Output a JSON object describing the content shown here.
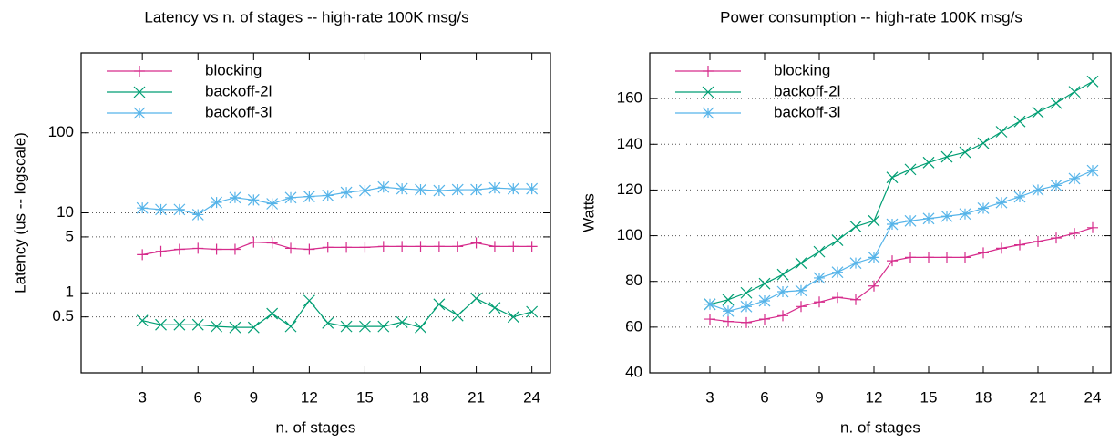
{
  "chart_data": [
    {
      "type": "line",
      "title": "Latency vs n. of stages -- high-rate 100K msg/s",
      "x_label": "n. of stages",
      "y_label": "Latency (us -- logscale)",
      "log_y": true,
      "grid": true,
      "legend": "top-left",
      "xlim": [
        -0.3,
        25
      ],
      "xticks": [
        3,
        6,
        9,
        12,
        15,
        18,
        21,
        24
      ],
      "ylim": [
        0.1,
        1000
      ],
      "yticks": [
        0.5,
        1,
        5,
        10,
        100
      ],
      "x": [
        3,
        4,
        5,
        6,
        7,
        8,
        9,
        10,
        11,
        12,
        13,
        14,
        15,
        16,
        17,
        18,
        19,
        20,
        21,
        22,
        23,
        24
      ],
      "series": [
        {
          "name": "blocking",
          "color": "#d62c8c",
          "marker": "plus",
          "values": [
            3.0,
            3.3,
            3.5,
            3.6,
            3.5,
            3.5,
            4.3,
            4.2,
            3.6,
            3.5,
            3.7,
            3.7,
            3.7,
            3.8,
            3.8,
            3.8,
            3.8,
            3.8,
            4.2,
            3.8,
            3.8,
            3.8
          ]
        },
        {
          "name": "backoff-2l",
          "color": "#009e73",
          "marker": "cross",
          "values": [
            0.45,
            0.4,
            0.4,
            0.4,
            0.38,
            0.37,
            0.37,
            0.55,
            0.38,
            0.8,
            0.42,
            0.38,
            0.38,
            0.38,
            0.43,
            0.37,
            0.72,
            0.52,
            0.85,
            0.65,
            0.5,
            0.58
          ]
        },
        {
          "name": "backoff-3l",
          "color": "#56b4e9",
          "marker": "star",
          "values": [
            11.5,
            11,
            11,
            9.5,
            13.5,
            15.5,
            14.5,
            13,
            15.5,
            16,
            16.5,
            18,
            19,
            21,
            20,
            19.5,
            19,
            19.5,
            19.5,
            20.5,
            20,
            20
          ]
        }
      ]
    },
    {
      "type": "line",
      "title": "Power consumption -- high-rate 100K msg/s",
      "x_label": "n. of stages",
      "y_label": "Watts",
      "log_y": false,
      "grid": true,
      "legend": "top-left",
      "xlim": [
        -0.3,
        25
      ],
      "xticks": [
        3,
        6,
        9,
        12,
        15,
        18,
        21,
        24
      ],
      "ylim": [
        40,
        180
      ],
      "yticks": [
        40,
        60,
        80,
        100,
        120,
        140,
        160
      ],
      "x": [
        3,
        4,
        5,
        6,
        7,
        8,
        9,
        10,
        11,
        12,
        13,
        14,
        15,
        16,
        17,
        18,
        19,
        20,
        21,
        22,
        23,
        24
      ],
      "series": [
        {
          "name": "blocking",
          "color": "#d62c8c",
          "marker": "plus",
          "values": [
            63.5,
            62.5,
            62,
            63.5,
            65,
            69,
            71,
            73,
            72,
            78,
            89,
            90.5,
            90.5,
            90.5,
            90.5,
            92.5,
            94.5,
            96,
            97.5,
            99,
            101,
            103.5
          ]
        },
        {
          "name": "backoff-2l",
          "color": "#009e73",
          "marker": "cross",
          "values": [
            70,
            72,
            75,
            79,
            83,
            88,
            93,
            98,
            104,
            106.5,
            125.5,
            129,
            132,
            134.5,
            136.5,
            140.5,
            145.5,
            150,
            154,
            158,
            163,
            167.5
          ]
        },
        {
          "name": "backoff-3l",
          "color": "#56b4e9",
          "marker": "star",
          "values": [
            70,
            67,
            69,
            71.5,
            75.5,
            76,
            81.5,
            84,
            88,
            90.5,
            105,
            106.5,
            107.5,
            108.5,
            109.5,
            112,
            114.5,
            117,
            120,
            122,
            125,
            128.5
          ]
        }
      ]
    }
  ]
}
